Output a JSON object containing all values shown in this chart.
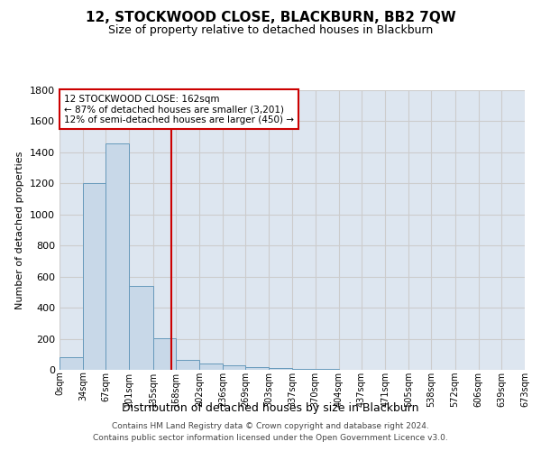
{
  "title": "12, STOCKWOOD CLOSE, BLACKBURN, BB2 7QW",
  "subtitle": "Size of property relative to detached houses in Blackburn",
  "xlabel": "Distribution of detached houses by size in Blackburn",
  "ylabel": "Number of detached properties",
  "footer_line1": "Contains HM Land Registry data © Crown copyright and database right 2024.",
  "footer_line2": "Contains public sector information licensed under the Open Government Licence v3.0.",
  "property_size": 162,
  "annotation_line1": "12 STOCKWOOD CLOSE: 162sqm",
  "annotation_line2": "← 87% of detached houses are smaller (3,201)",
  "annotation_line3": "12% of semi-detached houses are larger (450) →",
  "bar_edges": [
    0,
    34,
    67,
    101,
    135,
    168,
    202,
    236,
    269,
    303,
    337,
    370,
    404,
    437,
    471,
    505,
    538,
    572,
    606,
    639,
    673
  ],
  "bar_heights": [
    80,
    1200,
    1460,
    540,
    205,
    65,
    40,
    30,
    20,
    10,
    5,
    3,
    2,
    1,
    0,
    0,
    0,
    0,
    0,
    0
  ],
  "bar_color": "#c8d8e8",
  "bar_edge_color": "#6699bb",
  "vline_color": "#cc0000",
  "vline_x": 162,
  "annotation_box_color": "#cc0000",
  "ylim": [
    0,
    1800
  ],
  "yticks": [
    0,
    200,
    400,
    600,
    800,
    1000,
    1200,
    1400,
    1600,
    1800
  ],
  "grid_color": "#cccccc",
  "bg_color": "#dde6f0"
}
